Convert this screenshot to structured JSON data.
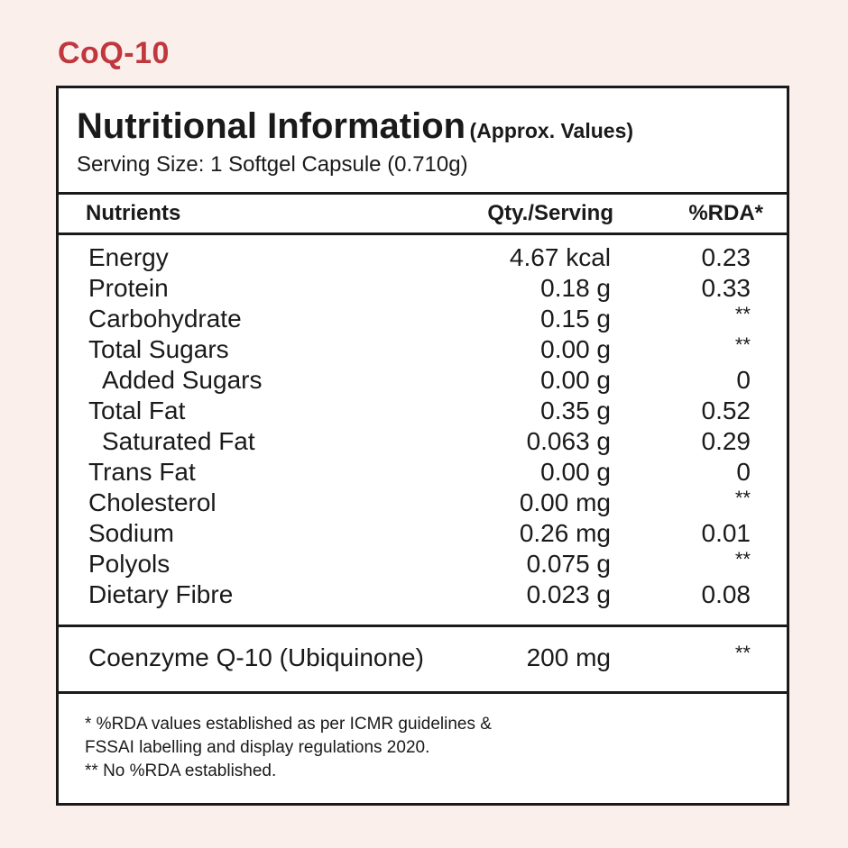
{
  "brand": "CoQ-10",
  "panel": {
    "title": "Nutritional Information",
    "title_suffix": "(Approx. Values)",
    "serving_size": "Serving Size: 1 Softgel Capsule (0.710g)"
  },
  "columns": {
    "nutrients": "Nutrients",
    "qty": "Qty./Serving",
    "rda": "%RDA*"
  },
  "rows": [
    {
      "name": "Energy",
      "qty": "4.67 kcal",
      "rda": "0.23",
      "indent": false
    },
    {
      "name": "Protein",
      "qty": "0.18 g",
      "rda": "0.33",
      "indent": false
    },
    {
      "name": "Carbohydrate",
      "qty": "0.15 g",
      "rda": "**",
      "indent": false
    },
    {
      "name": "Total Sugars",
      "qty": "0.00 g",
      "rda": "**",
      "indent": false
    },
    {
      "name": "Added Sugars",
      "qty": "0.00 g",
      "rda": "0",
      "indent": true
    },
    {
      "name": "Total Fat",
      "qty": "0.35 g",
      "rda": "0.52",
      "indent": false
    },
    {
      "name": "Saturated Fat",
      "qty": "0.063 g",
      "rda": "0.29",
      "indent": true
    },
    {
      "name": "Trans Fat",
      "qty": "0.00 g",
      "rda": "0",
      "indent": false
    },
    {
      "name": "Cholesterol",
      "qty": "0.00 mg",
      "rda": "**",
      "indent": false
    },
    {
      "name": "Sodium",
      "qty": "0.26 mg",
      "rda": "0.01",
      "indent": false
    },
    {
      "name": "Polyols",
      "qty": "0.075 g",
      "rda": "**",
      "indent": false
    },
    {
      "name": "Dietary Fibre",
      "qty": "0.023 g",
      "rda": "0.08",
      "indent": false
    }
  ],
  "active": {
    "name": "Coenzyme Q-10 (Ubiquinone)",
    "qty": "200 mg",
    "rda": "**"
  },
  "footnotes": {
    "line1": "* %RDA values established as per ICMR guidelines &",
    "line2": "FSSAI labelling and display regulations 2020.",
    "line3": "** No %RDA established."
  }
}
